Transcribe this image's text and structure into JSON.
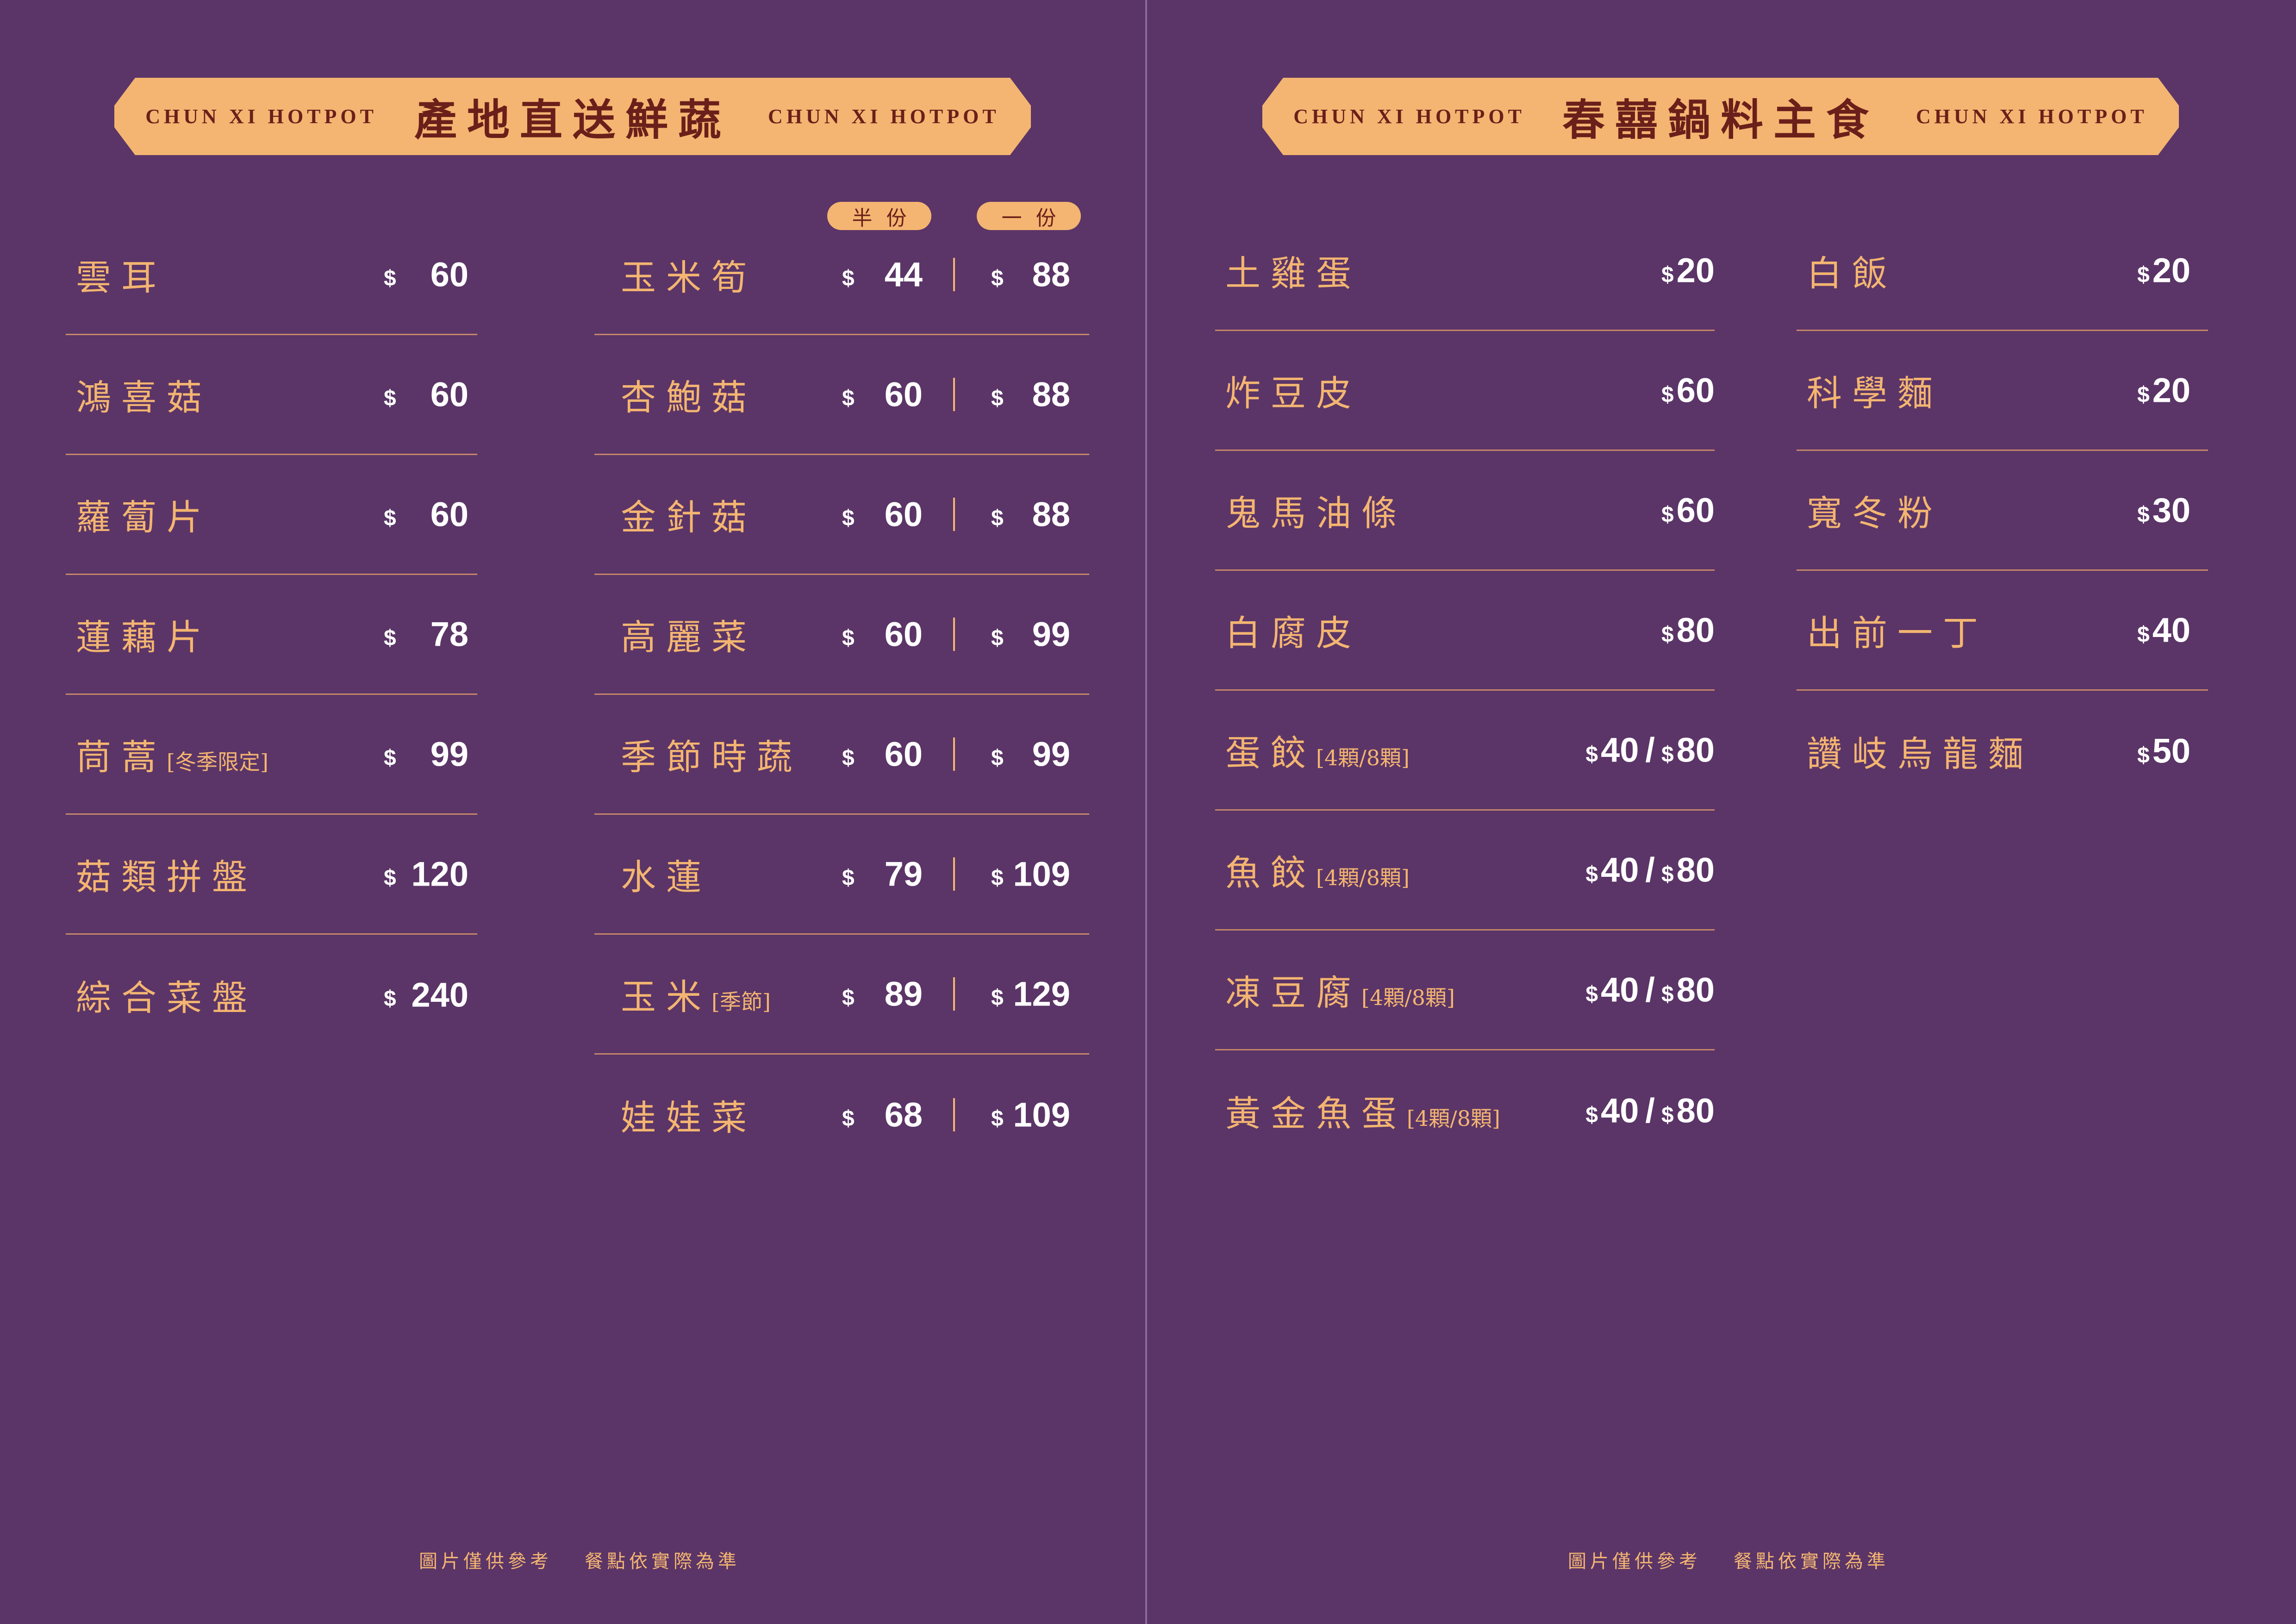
{
  "colors": {
    "background": "#5b3567",
    "accent": "#f3b571",
    "title_text": "#6b1f1a",
    "price_text": "#ffffff"
  },
  "left_page": {
    "banner": {
      "brand_left": "CHUN XI HOTPOT",
      "title": "產地直送鮮蔬",
      "brand_right": "CHUN XI HOTPOT"
    },
    "size_labels": {
      "half": "半份",
      "full": "一份"
    },
    "col1": [
      {
        "name": "雲耳",
        "tag": "",
        "currency": "$",
        "price": "60"
      },
      {
        "name": "鴻喜菇",
        "tag": "",
        "currency": "$",
        "price": "60"
      },
      {
        "name": "蘿蔔片",
        "tag": "",
        "currency": "$",
        "price": "60"
      },
      {
        "name": "蓮藕片",
        "tag": "",
        "currency": "$",
        "price": "78"
      },
      {
        "name": "茼蒿",
        "tag": "[冬季限定]",
        "currency": "$",
        "price": "99"
      },
      {
        "name": "菇類拼盤",
        "tag": "",
        "currency": "$",
        "price": "120"
      },
      {
        "name": "綜合菜盤",
        "tag": "",
        "currency": "$",
        "price": "240"
      }
    ],
    "col2": [
      {
        "name": "玉米筍",
        "tag": "",
        "currency": "$",
        "half": "44",
        "full": "88"
      },
      {
        "name": "杏鮑菇",
        "tag": "",
        "currency": "$",
        "half": "60",
        "full": "88"
      },
      {
        "name": "金針菇",
        "tag": "",
        "currency": "$",
        "half": "60",
        "full": "88"
      },
      {
        "name": "高麗菜",
        "tag": "",
        "currency": "$",
        "half": "60",
        "full": "99"
      },
      {
        "name": "季節時蔬",
        "tag": "",
        "currency": "$",
        "half": "60",
        "full": "99"
      },
      {
        "name": "水蓮",
        "tag": "",
        "currency": "$",
        "half": "79",
        "full": "109"
      },
      {
        "name": "玉米",
        "tag": "[季節]",
        "currency": "$",
        "half": "89",
        "full": "129"
      },
      {
        "name": "娃娃菜",
        "tag": "",
        "currency": "$",
        "half": "68",
        "full": "109"
      }
    ],
    "footer": {
      "note1": "圖片僅供參考",
      "note2": "餐點依實際為準"
    }
  },
  "right_page": {
    "banner": {
      "brand_left": "CHUN XI HOTPOT",
      "title": "春囍鍋料主食",
      "brand_right": "CHUN XI HOTPOT"
    },
    "col3": [
      {
        "name": "土雞蛋",
        "tag": "",
        "p1": "20",
        "p2": ""
      },
      {
        "name": "炸豆皮",
        "tag": "",
        "p1": "60",
        "p2": ""
      },
      {
        "name": "鬼馬油條",
        "tag": "",
        "p1": "60",
        "p2": ""
      },
      {
        "name": "白腐皮",
        "tag": "",
        "p1": "80",
        "p2": ""
      },
      {
        "name": "蛋餃",
        "tag": "[4顆/8顆]",
        "p1": "40",
        "p2": "80"
      },
      {
        "name": "魚餃",
        "tag": "[4顆/8顆]",
        "p1": "40",
        "p2": "80"
      },
      {
        "name": "凍豆腐",
        "tag": "[4顆/8顆]",
        "p1": "40",
        "p2": "80"
      },
      {
        "name": "黃金魚蛋",
        "tag": "[4顆/8顆]",
        "p1": "40",
        "p2": "80"
      }
    ],
    "col4": [
      {
        "name": "白飯",
        "tag": "",
        "p1": "20",
        "p2": ""
      },
      {
        "name": "科學麵",
        "tag": "",
        "p1": "20",
        "p2": ""
      },
      {
        "name": "寬冬粉",
        "tag": "",
        "p1": "30",
        "p2": ""
      },
      {
        "name": "出前一丁",
        "tag": "",
        "p1": "40",
        "p2": ""
      },
      {
        "name": "讚岐烏龍麵",
        "tag": "",
        "p1": "50",
        "p2": ""
      }
    ],
    "currency": "$",
    "separator": "/",
    "footer": {
      "note1": "圖片僅供參考",
      "note2": "餐點依實際為準"
    }
  }
}
